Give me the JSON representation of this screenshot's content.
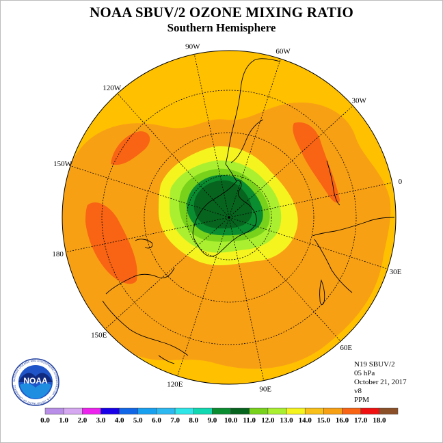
{
  "title": "NOAA SBUV/2 OZONE MIXING RATIO",
  "subtitle": "Southern Hemisphere",
  "longitude_labels": [
    "90W",
    "60W",
    "30W",
    "0",
    "30E",
    "60E",
    "90E",
    "120E",
    "150E",
    "180",
    "150W",
    "120W"
  ],
  "info": {
    "satellite": "N19 SBUV/2",
    "level": "05 hPa",
    "date": "October 21, 2017",
    "version": "v8",
    "units": "PPM"
  },
  "colorbar": {
    "ticks": [
      "0.0",
      "1.0",
      "2.0",
      "3.0",
      "4.0",
      "5.0",
      "6.0",
      "7.0",
      "8.0",
      "9.0",
      "10.0",
      "11.0",
      "12.0",
      "13.0",
      "14.0",
      "15.0",
      "16.0",
      "17.0",
      "18.0"
    ],
    "colors": [
      "#b98ee8",
      "#d7a8f2",
      "#ee22ee",
      "#1800e8",
      "#1066e6",
      "#18a0f0",
      "#2cb8f0",
      "#2ee6e8",
      "#10d8b0",
      "#0a8c30",
      "#06641e",
      "#78d21c",
      "#aaf030",
      "#f6f41e",
      "#f8c018",
      "#f8a014",
      "#f86414",
      "#f01010",
      "#8c5028"
    ],
    "min": 0.0,
    "max": 18.0
  },
  "logo": {
    "wordmark": "NOAA",
    "ring_text": "NATIONAL OCEANIC AND ATMOSPHERIC ADMINISTRATION · U.S. DEPARTMENT OF COMMERCE"
  },
  "map_colors": {
    "background": "#ffc000",
    "mid": "#f8a014",
    "high": "#f86414",
    "yellow": "#f6f41e",
    "yellow_green": "#aaf030",
    "green": "#78d21c",
    "dark_green": "#0a8c30",
    "darkest": "#06641e"
  }
}
